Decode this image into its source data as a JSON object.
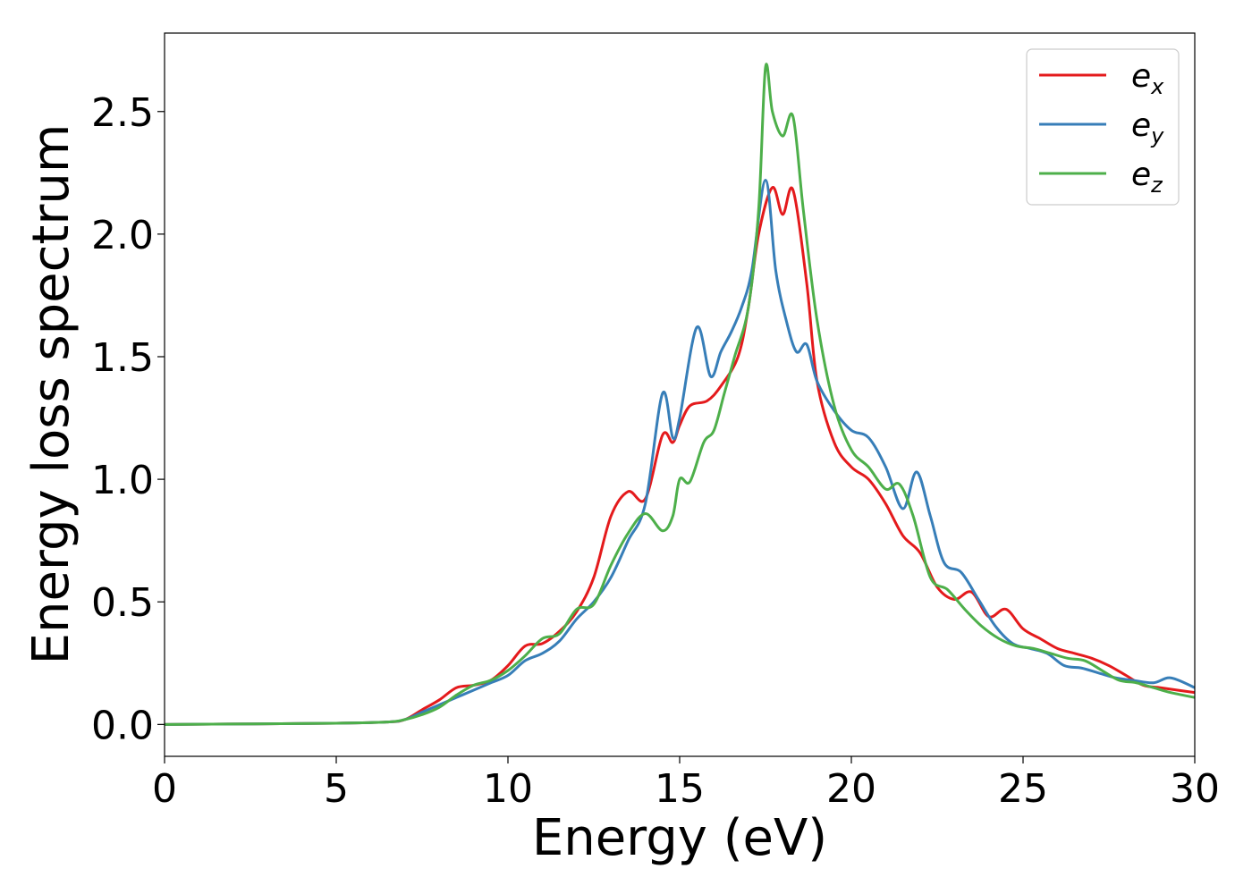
{
  "chart_data": {
    "type": "line",
    "title": "",
    "xlabel": "Energy (eV)",
    "ylabel": "Energy loss spectrum",
    "xlim": [
      0,
      30
    ],
    "ylim": [
      -0.13,
      2.82
    ],
    "xticks": [
      0,
      5,
      10,
      15,
      20,
      25,
      30
    ],
    "xtick_labels": [
      "0",
      "5",
      "10",
      "15",
      "20",
      "25",
      "30"
    ],
    "yticks": [
      0.0,
      0.5,
      1.0,
      1.5,
      2.0,
      2.5
    ],
    "ytick_labels": [
      "0.0",
      "0.5",
      "1.0",
      "1.5",
      "2.0",
      "2.5"
    ],
    "grid": false,
    "legend_position": "top-right",
    "series": [
      {
        "name": "e_x",
        "legend_main": "e",
        "legend_sub": "x",
        "color": "#e41a1c",
        "x": [
          0,
          5,
          6.5,
          7,
          7.5,
          8,
          8.5,
          9,
          9.5,
          10,
          10.5,
          11,
          11.5,
          12,
          12.5,
          13,
          13.5,
          14,
          14.5,
          14.8,
          15,
          15.3,
          15.8,
          16.2,
          16.7,
          17,
          17.3,
          17.7,
          18,
          18.3,
          18.7,
          19,
          19.5,
          20,
          20.5,
          21,
          21.5,
          22,
          22.5,
          23,
          23.5,
          24,
          24.5,
          25,
          25.5,
          26,
          26.5,
          27,
          27.5,
          28,
          28.5,
          29,
          29.5,
          30
        ],
        "values": [
          0.0,
          0.005,
          0.01,
          0.02,
          0.06,
          0.1,
          0.15,
          0.16,
          0.18,
          0.24,
          0.32,
          0.33,
          0.38,
          0.46,
          0.6,
          0.85,
          0.95,
          0.92,
          1.18,
          1.15,
          1.22,
          1.3,
          1.32,
          1.38,
          1.5,
          1.7,
          2.0,
          2.19,
          2.08,
          2.18,
          1.8,
          1.4,
          1.15,
          1.05,
          1.0,
          0.9,
          0.77,
          0.7,
          0.56,
          0.51,
          0.54,
          0.44,
          0.47,
          0.39,
          0.35,
          0.31,
          0.29,
          0.27,
          0.24,
          0.2,
          0.16,
          0.15,
          0.14,
          0.13
        ]
      },
      {
        "name": "e_y",
        "legend_main": "e",
        "legend_sub": "y",
        "color": "#377eb8",
        "x": [
          0,
          5,
          6.5,
          7,
          7.5,
          8,
          8.5,
          9,
          9.5,
          10,
          10.5,
          11,
          11.5,
          12,
          12.5,
          13,
          13.5,
          14,
          14.5,
          14.8,
          15,
          15.5,
          15.9,
          16.2,
          16.5,
          16.8,
          17.1,
          17.5,
          17.8,
          18.1,
          18.4,
          18.7,
          19,
          19.5,
          20,
          20.5,
          21,
          21.5,
          21.9,
          22.3,
          22.7,
          23.2,
          23.7,
          24.2,
          24.7,
          25.2,
          25.7,
          26.2,
          26.7,
          27.2,
          27.7,
          28.2,
          28.8,
          29.3,
          30
        ],
        "values": [
          0.0,
          0.005,
          0.01,
          0.02,
          0.05,
          0.08,
          0.11,
          0.14,
          0.17,
          0.2,
          0.26,
          0.29,
          0.34,
          0.43,
          0.5,
          0.6,
          0.75,
          0.9,
          1.35,
          1.17,
          1.25,
          1.62,
          1.42,
          1.52,
          1.6,
          1.7,
          1.85,
          2.22,
          1.85,
          1.65,
          1.52,
          1.55,
          1.4,
          1.28,
          1.2,
          1.17,
          1.05,
          0.88,
          1.03,
          0.85,
          0.66,
          0.62,
          0.51,
          0.4,
          0.33,
          0.31,
          0.29,
          0.24,
          0.23,
          0.21,
          0.19,
          0.18,
          0.17,
          0.19,
          0.15
        ]
      },
      {
        "name": "e_z",
        "legend_main": "e",
        "legend_sub": "z",
        "color": "#4daf4a",
        "x": [
          0,
          5,
          6.5,
          7,
          7.5,
          8,
          8.5,
          9,
          9.5,
          10,
          10.5,
          11,
          11.5,
          12,
          12.5,
          13,
          13.5,
          14,
          14.5,
          14.8,
          15,
          15.3,
          15.7,
          16,
          16.3,
          16.6,
          17,
          17.3,
          17.5,
          17.7,
          18,
          18.3,
          18.6,
          19,
          19.5,
          20,
          20.5,
          21,
          21.4,
          21.8,
          22.3,
          22.8,
          23.3,
          23.8,
          24.3,
          24.8,
          25.3,
          25.8,
          26.3,
          26.8,
          27.3,
          27.8,
          28.3,
          28.8,
          29.3,
          30
        ],
        "values": [
          0.0,
          0.005,
          0.01,
          0.02,
          0.04,
          0.07,
          0.12,
          0.16,
          0.18,
          0.22,
          0.28,
          0.35,
          0.37,
          0.47,
          0.49,
          0.65,
          0.78,
          0.86,
          0.79,
          0.85,
          1.0,
          0.99,
          1.15,
          1.2,
          1.35,
          1.5,
          1.7,
          2.1,
          2.68,
          2.5,
          2.4,
          2.48,
          2.1,
          1.65,
          1.3,
          1.12,
          1.05,
          0.96,
          0.98,
          0.85,
          0.6,
          0.55,
          0.47,
          0.4,
          0.35,
          0.32,
          0.31,
          0.29,
          0.27,
          0.26,
          0.22,
          0.18,
          0.17,
          0.15,
          0.13,
          0.11
        ]
      }
    ]
  }
}
